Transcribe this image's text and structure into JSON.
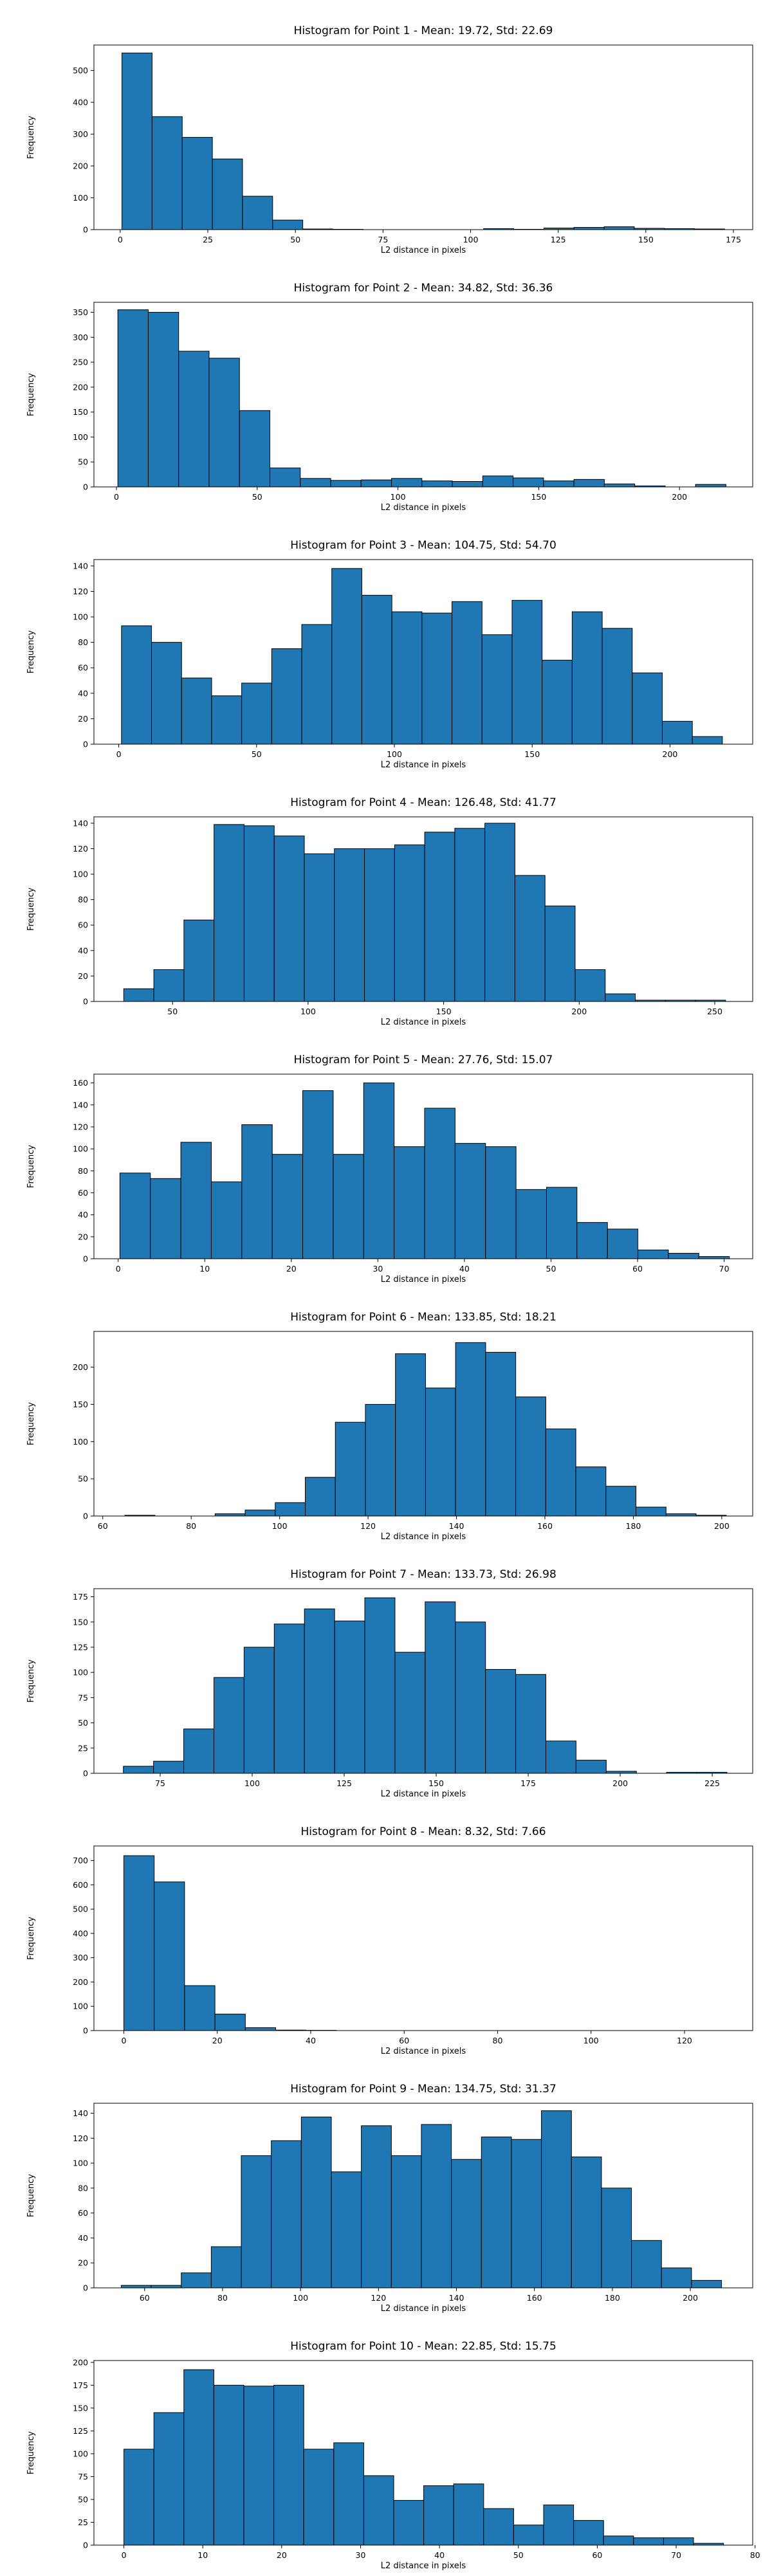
{
  "chart_data": [
    {
      "type": "bar",
      "title": "Histogram for Point 1 - Mean: 19.72, Std: 22.69",
      "xlabel": "L2 distance in pixels",
      "ylabel": "Frequency",
      "xlim": [
        -7.5,
        180.5
      ],
      "ylim": [
        0,
        580
      ],
      "xticks": [
        0,
        25,
        50,
        75,
        100,
        125,
        150,
        175
      ],
      "yticks": [
        0,
        100,
        200,
        300,
        400,
        500
      ],
      "bin_start": 0.5,
      "bin_width": 8.6,
      "values": [
        555,
        355,
        290,
        222,
        105,
        30,
        2,
        1,
        0,
        0,
        0,
        0,
        3,
        1,
        5,
        7,
        9,
        4,
        3,
        2
      ]
    },
    {
      "type": "bar",
      "title": "Histogram for Point 2 - Mean: 34.82, Std: 36.36",
      "xlabel": "L2 distance in pixels",
      "ylabel": "Frequency",
      "xlim": [
        -8,
        226
      ],
      "ylim": [
        0,
        370
      ],
      "xticks": [
        0,
        50,
        100,
        150,
        200
      ],
      "yticks": [
        0,
        50,
        100,
        150,
        200,
        250,
        300,
        350
      ],
      "bin_start": 0.5,
      "bin_width": 10.8,
      "values": [
        355,
        350,
        272,
        258,
        153,
        38,
        17,
        13,
        14,
        17,
        12,
        11,
        22,
        18,
        12,
        15,
        6,
        2,
        0,
        5
      ]
    },
    {
      "type": "bar",
      "title": "Histogram for Point 3 - Mean: 104.75, Std: 54.70",
      "xlabel": "L2 distance in pixels",
      "ylabel": "Frequency",
      "xlim": [
        -9,
        230
      ],
      "ylim": [
        0,
        145
      ],
      "xticks": [
        0,
        50,
        100,
        150,
        200
      ],
      "yticks": [
        0,
        20,
        40,
        60,
        80,
        100,
        120,
        140
      ],
      "bin_start": 1,
      "bin_width": 10.9,
      "values": [
        93,
        80,
        52,
        38,
        48,
        75,
        94,
        138,
        117,
        104,
        103,
        112,
        86,
        113,
        66,
        104,
        91,
        56,
        18,
        6
      ]
    },
    {
      "type": "bar",
      "title": "Histogram for Point 4 - Mean: 126.48, Std: 41.77",
      "xlabel": "L2 distance in pixels",
      "ylabel": "Frequency",
      "xlim": [
        21,
        264
      ],
      "ylim": [
        0,
        145
      ],
      "xticks": [
        50,
        100,
        150,
        200,
        250
      ],
      "yticks": [
        0,
        20,
        40,
        60,
        80,
        100,
        120,
        140
      ],
      "bin_start": 32,
      "bin_width": 11.1,
      "values": [
        10,
        25,
        64,
        139,
        138,
        130,
        116,
        120,
        120,
        123,
        133,
        136,
        140,
        99,
        75,
        25,
        6,
        1,
        1,
        1
      ]
    },
    {
      "type": "bar",
      "title": "Histogram for Point 5 - Mean: 27.76, Std: 15.07",
      "xlabel": "L2 distance in pixels",
      "ylabel": "Frequency",
      "xlim": [
        -2.8,
        73.3
      ],
      "ylim": [
        0,
        168
      ],
      "xticks": [
        0,
        10,
        20,
        30,
        40,
        50,
        60,
        70
      ],
      "yticks": [
        0,
        20,
        40,
        60,
        80,
        100,
        120,
        140,
        160
      ],
      "bin_start": 0.2,
      "bin_width": 3.52,
      "values": [
        78,
        73,
        106,
        70,
        122,
        95,
        153,
        95,
        160,
        102,
        137,
        105,
        102,
        63,
        65,
        33,
        27,
        8,
        5,
        2
      ]
    },
    {
      "type": "bar",
      "title": "Histogram for Point 6 - Mean: 133.85, Std: 18.21",
      "xlabel": "L2 distance in pixels",
      "ylabel": "Frequency",
      "xlim": [
        58,
        207
      ],
      "ylim": [
        0,
        248
      ],
      "xticks": [
        60,
        80,
        100,
        120,
        140,
        160,
        180,
        200
      ],
      "yticks": [
        0,
        50,
        100,
        150,
        200
      ],
      "bin_start": 65,
      "bin_width": 6.8,
      "values": [
        1,
        0,
        0,
        3,
        8,
        18,
        52,
        126,
        150,
        218,
        172,
        233,
        220,
        160,
        117,
        66,
        40,
        12,
        3,
        1
      ]
    },
    {
      "type": "bar",
      "title": "Histogram for Point 7 - Mean: 133.73, Std: 26.98",
      "xlabel": "L2 distance in pixels",
      "ylabel": "Frequency",
      "xlim": [
        57,
        236
      ],
      "ylim": [
        0,
        183
      ],
      "xticks": [
        75,
        100,
        125,
        150,
        175,
        200,
        225
      ],
      "yticks": [
        0,
        25,
        50,
        75,
        100,
        125,
        150,
        175
      ],
      "bin_start": 65,
      "bin_width": 8.2,
      "values": [
        7,
        12,
        44,
        95,
        125,
        148,
        163,
        151,
        174,
        120,
        170,
        150,
        103,
        98,
        32,
        13,
        2,
        0,
        1,
        1
      ]
    },
    {
      "type": "bar",
      "title": "Histogram for Point 8 - Mean: 8.32, Std: 7.66",
      "xlabel": "L2 distance in pixels",
      "ylabel": "Frequency",
      "xlim": [
        -6.4,
        134.6
      ],
      "ylim": [
        0,
        760
      ],
      "xticks": [
        0,
        20,
        40,
        60,
        80,
        100,
        120
      ],
      "yticks": [
        0,
        100,
        200,
        300,
        400,
        500,
        600,
        700
      ],
      "bin_start": 0,
      "bin_width": 6.5,
      "values": [
        720,
        612,
        185,
        68,
        12,
        2,
        1,
        0,
        0,
        0,
        0,
        0,
        0,
        0,
        0,
        0,
        0,
        0,
        0,
        0
      ]
    },
    {
      "type": "bar",
      "title": "Histogram for Point 9 - Mean: 134.75, Std: 31.37",
      "xlabel": "L2 distance in pixels",
      "ylabel": "Frequency",
      "xlim": [
        47,
        216
      ],
      "ylim": [
        0,
        148
      ],
      "xticks": [
        60,
        80,
        100,
        120,
        140,
        160,
        180,
        200
      ],
      "yticks": [
        0,
        20,
        40,
        60,
        80,
        100,
        120,
        140
      ],
      "bin_start": 54,
      "bin_width": 7.7,
      "values": [
        2,
        2,
        12,
        33,
        106,
        118,
        137,
        93,
        130,
        106,
        131,
        103,
        121,
        119,
        142,
        105,
        80,
        38,
        16,
        6
      ]
    },
    {
      "type": "bar",
      "title": "Histogram for Point 10 - Mean: 22.85, Std: 15.75",
      "xlabel": "L2 distance in pixels",
      "ylabel": "Frequency",
      "xlim": [
        -3.8,
        79.7
      ],
      "ylim": [
        0,
        202
      ],
      "xticks": [
        0,
        10,
        20,
        30,
        40,
        50,
        60,
        70,
        80
      ],
      "yticks": [
        0,
        25,
        50,
        75,
        100,
        125,
        150,
        175,
        200
      ],
      "bin_start": 0,
      "bin_width": 3.8,
      "values": [
        105,
        145,
        192,
        175,
        174,
        175,
        105,
        112,
        76,
        49,
        65,
        67,
        40,
        22,
        44,
        27,
        10,
        8,
        8,
        2
      ]
    }
  ],
  "colors": {
    "bar_fill": "#1f77b4",
    "bar_edge": "#000000",
    "axis": "#000000"
  }
}
